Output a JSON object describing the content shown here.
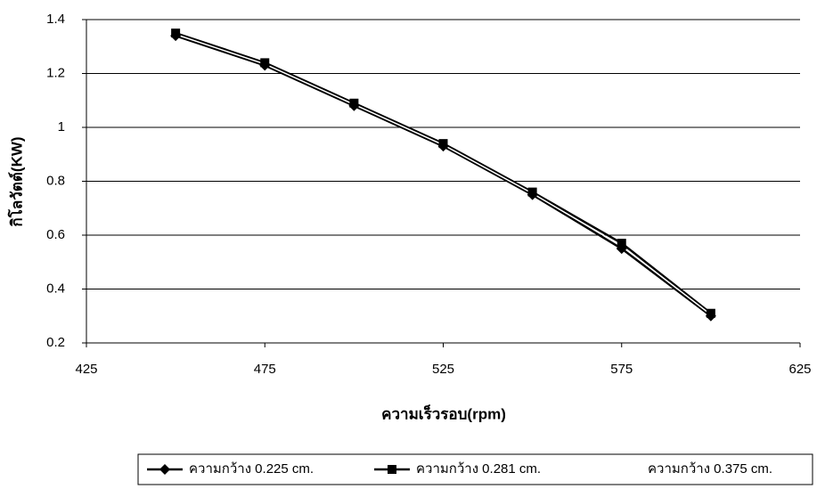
{
  "chart_data": {
    "type": "line",
    "x_label": "ความเร็วรอบ(rpm)",
    "y_label": "กิโลวัตต์(KW)",
    "xlim": [
      425,
      625
    ],
    "xticks": [
      425,
      475,
      525,
      575,
      625
    ],
    "ylim": [
      0.2,
      1.4
    ],
    "yticks": [
      0.2,
      0.4,
      0.6,
      0.8,
      1,
      1.2,
      1.4
    ],
    "grid": true,
    "x": [
      450,
      475,
      500,
      525,
      550,
      575,
      600
    ],
    "series": [
      {
        "name": "ความกว้าง 0.225 cm.",
        "color": "#000000",
        "marker": "diamond",
        "values": [
          1.34,
          1.23,
          1.08,
          0.93,
          0.75,
          0.55,
          0.3
        ]
      },
      {
        "name": "ความกว้าง 0.281 cm.",
        "color": "#000000",
        "marker": "square",
        "values": [
          1.35,
          1.24,
          1.09,
          0.94,
          0.76,
          0.57,
          0.31
        ]
      },
      {
        "name": "ความกว้าง 0.375 cm.",
        "color": "#ffffff",
        "marker": "none",
        "values": [
          1.345,
          1.235,
          1.085,
          0.935,
          0.755,
          0.56,
          0.305
        ]
      }
    ]
  }
}
